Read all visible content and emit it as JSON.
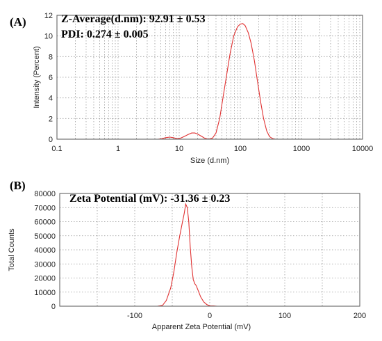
{
  "chart_data": [
    {
      "panel_label": "(A)",
      "type": "line",
      "x_scale": "log",
      "xlim": [
        0.1,
        10000
      ],
      "ylim": [
        0,
        12
      ],
      "xlabel": "Size (d.nm)",
      "ylabel": "Intensity (Percent)",
      "x_ticks": [
        0.1,
        1,
        10,
        100,
        1000,
        10000
      ],
      "x_tick_labels": [
        "0.1",
        "1",
        "10",
        "100",
        "1000",
        "10000"
      ],
      "y_ticks": [
        0,
        2,
        4,
        6,
        8,
        10,
        12
      ],
      "y_tick_labels": [
        "0",
        "2",
        "4",
        "6",
        "8",
        "10",
        "12"
      ],
      "grid": true,
      "line_color": "#e03030",
      "annotations": [
        "Z-Average(d.nm): 92.91 ± 0.53",
        "PDI: 0.274 ± 0.005"
      ],
      "series": [
        {
          "x": [
            4.5,
            5.2,
            6.0,
            7.0,
            8.0,
            9.2,
            10.5,
            12,
            14,
            16,
            18,
            20,
            23,
            26,
            30,
            35,
            40,
            46,
            52,
            60,
            68,
            78,
            90,
            100,
            110,
            120,
            135,
            150,
            170,
            190,
            215,
            240,
            270,
            300,
            340,
            380,
            430
          ],
          "y": [
            0,
            0.05,
            0.15,
            0.2,
            0.15,
            0.05,
            0.1,
            0.25,
            0.45,
            0.6,
            0.6,
            0.5,
            0.3,
            0.1,
            0,
            0.1,
            0.6,
            2.0,
            4.0,
            6.3,
            8.3,
            10.0,
            10.9,
            11.15,
            11.2,
            11.0,
            10.3,
            9.3,
            7.6,
            5.7,
            3.6,
            2.0,
            0.8,
            0.25,
            0.05,
            0,
            0
          ]
        }
      ]
    },
    {
      "panel_label": "(B)",
      "type": "line",
      "xlim": [
        -200,
        200
      ],
      "ylim": [
        0,
        80000
      ],
      "xlabel": "Apparent Zeta Potential (mV)",
      "ylabel": "Total Counts",
      "x_ticks": [
        -100,
        0,
        100,
        200
      ],
      "x_tick_labels": [
        "-100",
        "0",
        "100",
        "200"
      ],
      "x_grid": [
        -150,
        -100,
        -50,
        0,
        50,
        100,
        150,
        200
      ],
      "y_ticks": [
        0,
        10000,
        20000,
        30000,
        40000,
        50000,
        60000,
        70000,
        80000
      ],
      "y_tick_labels": [
        "0",
        "10000",
        "20000",
        "30000",
        "40000",
        "50000",
        "60000",
        "70000",
        "80000"
      ],
      "grid": true,
      "line_color": "#e03030",
      "annotations": [
        "Zeta Potential (mV): -31.36 ± 0.23"
      ],
      "series": [
        {
          "x": [
            -200,
            -70,
            -63,
            -58,
            -52,
            -48,
            -44,
            -40,
            -37,
            -34,
            -32,
            -30,
            -28,
            -26,
            -24,
            -22,
            -20,
            -18,
            -15,
            -12,
            -8,
            -4,
            0,
            5,
            10,
            200
          ],
          "y": [
            0,
            0,
            600,
            4000,
            13000,
            24000,
            38000,
            50000,
            58000,
            66000,
            72500,
            70000,
            60000,
            42000,
            28000,
            19000,
            16000,
            14500,
            10500,
            6500,
            3000,
            1200,
            300,
            200,
            0,
            0
          ]
        }
      ]
    }
  ]
}
